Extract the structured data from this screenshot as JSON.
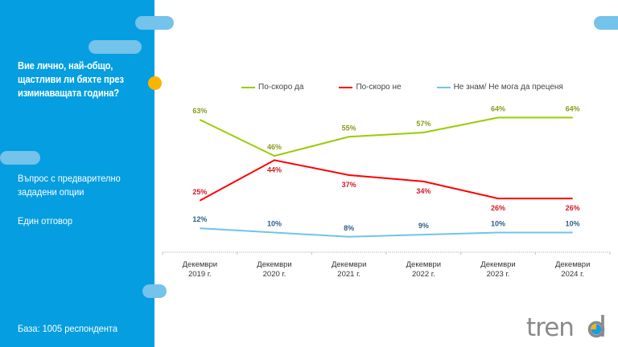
{
  "sidebar": {
    "question": "Вие лично, най-общо, щастливи ли бяхте през изминаващата година?",
    "question_type": "Въпрос с предварително зададени опции",
    "answer_type": "Един отговор",
    "base": "База:  1005 респондента"
  },
  "logo": {
    "text": "trend"
  },
  "colors": {
    "panel": "#059ee0",
    "accent_pill": "#73c3ea",
    "accent_dot": "#fbb400",
    "series_yes": "#99cc00",
    "series_no": "#ff0000",
    "series_dk": "#70c4e8"
  },
  "chart_data": {
    "type": "line",
    "title": "Вие лично, най-общо, щастливи ли бяхте през изминаващата година?",
    "xlabel": "",
    "ylabel": "",
    "categories": [
      [
        "Декември",
        "2019 г."
      ],
      [
        "Декември",
        "2020 г."
      ],
      [
        "Декември",
        "2021 г."
      ],
      [
        "Декември",
        "2022 г."
      ],
      [
        "Декември",
        "2023 г."
      ],
      [
        "Декември",
        "2024 г."
      ]
    ],
    "series": [
      {
        "name": "По-скоро да",
        "color": "#99cc00",
        "label_color": "#8a9a1e",
        "values": [
          63,
          46,
          55,
          57,
          64,
          64
        ],
        "labels": [
          "63%",
          "46%",
          "55%",
          "57%",
          "64%",
          "64%"
        ],
        "label_pos": [
          "above",
          "above",
          "above",
          "above",
          "above",
          "above"
        ]
      },
      {
        "name": "По-скоро не",
        "color": "#ff0000",
        "label_color": "#d11a2a",
        "values": [
          25,
          44,
          37,
          34,
          26,
          26
        ],
        "labels": [
          "25%",
          "44%",
          "37%",
          "34%",
          "26%",
          "26%"
        ],
        "label_pos": [
          "above",
          "below",
          "below",
          "below",
          "below",
          "below"
        ]
      },
      {
        "name": "Не знам/ Не мога да преценя",
        "color": "#70c4e8",
        "label_color": "#2f5d8a",
        "values": [
          12,
          10,
          8,
          9,
          10,
          10
        ],
        "labels": [
          "12%",
          "10%",
          "8%",
          "9%",
          "10%",
          "10%"
        ],
        "label_pos": [
          "above",
          "above",
          "above",
          "above",
          "above",
          "above"
        ]
      }
    ],
    "ylim": [
      0,
      70
    ],
    "grid": false,
    "legend": "top-center"
  }
}
